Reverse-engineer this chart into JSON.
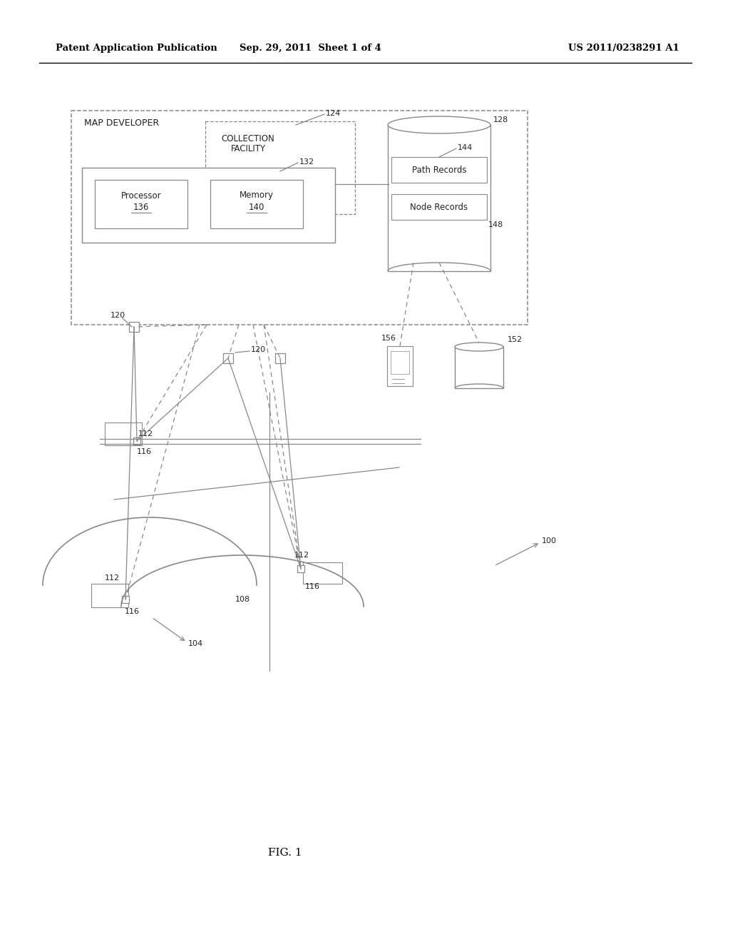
{
  "bg_color": "#ffffff",
  "line_color": "#888888",
  "text_color": "#222222",
  "header_left": "Patent Application Publication",
  "header_center": "Sep. 29, 2011  Sheet 1 of 4",
  "header_right": "US 2011/0238291 A1",
  "footer_label": "FIG. 1"
}
